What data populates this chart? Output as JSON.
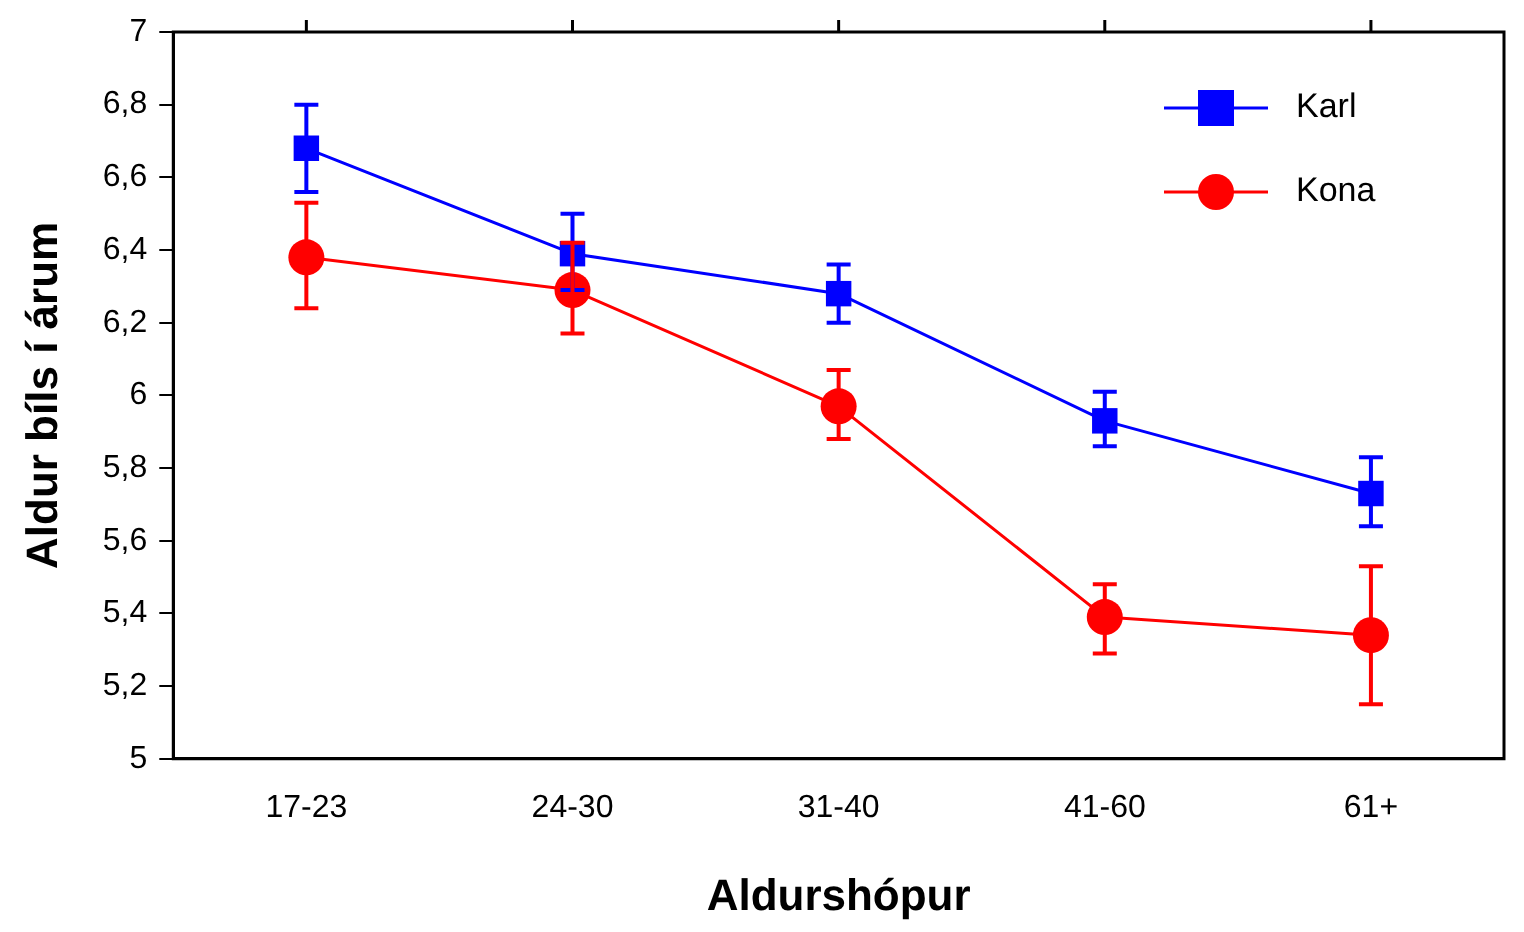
{
  "chart_data": {
    "type": "line",
    "xlabel": "Aldurshópur",
    "ylabel": "Aldur bíls í árum",
    "categories": [
      "17-23",
      "24-30",
      "31-40",
      "41-60",
      "61+"
    ],
    "series": [
      {
        "name": "Karl",
        "color": "#0000ff",
        "marker": "square",
        "values": [
          6.68,
          6.39,
          6.28,
          5.93,
          5.73
        ],
        "errors": [
          [
            6.56,
            6.8
          ],
          [
            6.29,
            6.5
          ],
          [
            6.2,
            6.36
          ],
          [
            5.86,
            6.01
          ],
          [
            5.64,
            5.83
          ]
        ]
      },
      {
        "name": "Kona",
        "color": "#ff0000",
        "marker": "circle",
        "values": [
          6.38,
          6.29,
          5.97,
          5.39,
          5.34
        ],
        "errors": [
          [
            6.24,
            6.53
          ],
          [
            6.17,
            6.42
          ],
          [
            5.88,
            6.07
          ],
          [
            5.29,
            5.48
          ],
          [
            5.15,
            5.53
          ]
        ]
      }
    ],
    "ylim": [
      5,
      7
    ],
    "yticks": [
      {
        "value": 5,
        "label": "5"
      },
      {
        "value": 5.2,
        "label": "5,2"
      },
      {
        "value": 5.4,
        "label": "5,4"
      },
      {
        "value": 5.6,
        "label": "5,6"
      },
      {
        "value": 5.8,
        "label": "5,8"
      },
      {
        "value": 6,
        "label": "6"
      },
      {
        "value": 6.2,
        "label": "6,2"
      },
      {
        "value": 6.4,
        "label": "6,4"
      },
      {
        "value": 6.6,
        "label": "6,6"
      },
      {
        "value": 6.8,
        "label": "6,8"
      },
      {
        "value": 7,
        "label": "7"
      }
    ],
    "grid": false,
    "legend": "top right"
  }
}
